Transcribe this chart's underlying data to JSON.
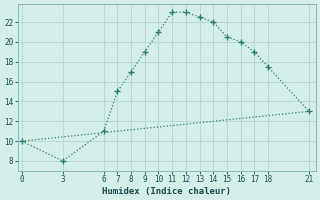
{
  "title": "",
  "xlabel": "Humidex (Indice chaleur)",
  "bg_color": "#d4eeea",
  "line_color": "#2e7d6e",
  "grid_color": "#b8d8d2",
  "curve_x": [
    0,
    3,
    6,
    7,
    8,
    9,
    10,
    11,
    12,
    13,
    14,
    15,
    16,
    17,
    18,
    21
  ],
  "curve_y": [
    10,
    8,
    11,
    15,
    17,
    19,
    21,
    23,
    23,
    22.5,
    22,
    20.5,
    20,
    19,
    17.5,
    13
  ],
  "line2_x": [
    0,
    21
  ],
  "line2_y": [
    10,
    13
  ],
  "xticks": [
    0,
    3,
    6,
    7,
    8,
    9,
    10,
    11,
    12,
    13,
    14,
    15,
    16,
    17,
    18,
    21
  ],
  "yticks": [
    8,
    10,
    12,
    14,
    16,
    18,
    20,
    22
  ],
  "xlim": [
    -0.3,
    21.5
  ],
  "ylim": [
    7.0,
    23.8
  ]
}
